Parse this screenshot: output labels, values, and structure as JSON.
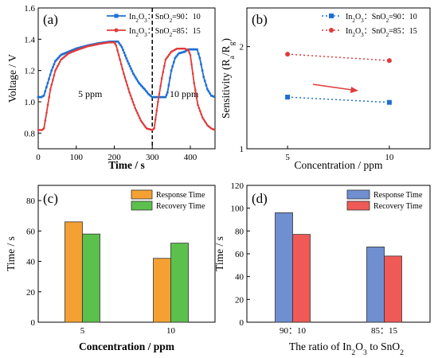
{
  "chart_data": [
    {
      "panel": "(a)",
      "type": "line",
      "xlabel": "Time / s",
      "ylabel": "Voltage / V",
      "xlim": [
        0,
        465
      ],
      "ylim": [
        0.7,
        1.6
      ],
      "xticks": [
        0,
        100,
        200,
        300,
        400
      ],
      "yticks": [
        0.8,
        1.0,
        1.2,
        1.4,
        1.6
      ],
      "xtick_labels": [
        "0",
        "100",
        "200",
        "300",
        "400"
      ],
      "ytick_labels": [
        "0.8",
        "1.0",
        "1.2",
        "1.4",
        "1.6"
      ],
      "legend": [
        "In2O3：SnO2=90：10",
        "In2O3：SnO2=85：15"
      ],
      "annotations": [
        "5 ppm",
        "10 ppm"
      ],
      "divider_x": 300,
      "series": [
        {
          "name": "In2O3：SnO2=90：10",
          "color": "#1f6fd1",
          "marker": "square",
          "points": [
            [
              0,
              1.03
            ],
            [
              8,
              1.03
            ],
            [
              15,
              1.04
            ],
            [
              25,
              1.12
            ],
            [
              35,
              1.2
            ],
            [
              45,
              1.26
            ],
            [
              60,
              1.3
            ],
            [
              80,
              1.32
            ],
            [
              100,
              1.34
            ],
            [
              130,
              1.36
            ],
            [
              160,
              1.375
            ],
            [
              190,
              1.385
            ],
            [
              210,
              1.385
            ],
            [
              220,
              1.35
            ],
            [
              235,
              1.26
            ],
            [
              250,
              1.18
            ],
            [
              265,
              1.12
            ],
            [
              280,
              1.08
            ],
            [
              290,
              1.05
            ],
            [
              300,
              1.03
            ],
            [
              320,
              1.03
            ],
            [
              335,
              1.03
            ],
            [
              340,
              1.06
            ],
            [
              350,
              1.2
            ],
            [
              360,
              1.28
            ],
            [
              370,
              1.31
            ],
            [
              385,
              1.32
            ],
            [
              395,
              1.335
            ],
            [
              418,
              1.335
            ],
            [
              425,
              1.28
            ],
            [
              435,
              1.16
            ],
            [
              445,
              1.08
            ],
            [
              455,
              1.04
            ],
            [
              465,
              1.03
            ]
          ]
        },
        {
          "name": "In2O3：SnO2=85：15",
          "color": "#e03b3b",
          "marker": "circle",
          "points": [
            [
              0,
              0.82
            ],
            [
              10,
              0.82
            ],
            [
              15,
              0.83
            ],
            [
              22,
              0.93
            ],
            [
              32,
              1.08
            ],
            [
              45,
              1.2
            ],
            [
              60,
              1.27
            ],
            [
              80,
              1.31
            ],
            [
              100,
              1.33
            ],
            [
              130,
              1.355
            ],
            [
              160,
              1.37
            ],
            [
              185,
              1.38
            ],
            [
              200,
              1.38
            ],
            [
              205,
              1.36
            ],
            [
              215,
              1.27
            ],
            [
              225,
              1.18
            ],
            [
              240,
              1.06
            ],
            [
              255,
              0.96
            ],
            [
              270,
              0.88
            ],
            [
              285,
              0.83
            ],
            [
              300,
              0.82
            ],
            [
              305,
              0.83
            ],
            [
              315,
              1.0
            ],
            [
              325,
              1.15
            ],
            [
              335,
              1.27
            ],
            [
              350,
              1.32
            ],
            [
              365,
              1.34
            ],
            [
              385,
              1.34
            ],
            [
              395,
              1.33
            ],
            [
              400,
              1.3
            ],
            [
              410,
              1.12
            ],
            [
              420,
              0.98
            ],
            [
              432,
              0.9
            ],
            [
              445,
              0.85
            ],
            [
              455,
              0.83
            ],
            [
              465,
              0.82
            ]
          ]
        }
      ]
    },
    {
      "panel": "(b)",
      "type": "scatter",
      "xlabel": "Concentration / ppm",
      "ylabel": "Sensitivity (Ra/Rg)",
      "yscale": "log",
      "xlim": [
        3,
        12
      ],
      "ylim": [
        1,
        2.6
      ],
      "xticks": [
        5,
        10
      ],
      "yticks": [
        1,
        2
      ],
      "xtick_labels": [
        "5",
        "10"
      ],
      "ytick_labels": [
        "1",
        "2"
      ],
      "legend": [
        "In2O3：SnO2=90：10",
        "In2O3：SnO2=85：15"
      ],
      "series": [
        {
          "name": "In2O3：SnO2=90：10",
          "color": "#1f6fd1",
          "marker": "square",
          "x": [
            5,
            10
          ],
          "y": [
            1.42,
            1.37
          ]
        },
        {
          "name": "In2O3：SnO2=85：15",
          "color": "#e03b3b",
          "marker": "circle",
          "x": [
            5,
            10
          ],
          "y": [
            1.9,
            1.82
          ]
        }
      ]
    },
    {
      "panel": "(c)",
      "type": "bar",
      "xlabel": "Concentration / ppm",
      "ylabel": "Time / s",
      "ylim": [
        0,
        90
      ],
      "yticks": [
        0,
        20,
        40,
        60,
        80
      ],
      "ytick_labels": [
        "0",
        "20",
        "40",
        "60",
        "80"
      ],
      "categories": [
        "5",
        "10"
      ],
      "series": [
        {
          "name": "Response Time",
          "color": "#f5a033",
          "values": [
            66,
            42
          ]
        },
        {
          "name": "Recovery Time",
          "color": "#5cc04d",
          "values": [
            58,
            52
          ]
        }
      ]
    },
    {
      "panel": "(d)",
      "type": "bar",
      "xlabel": "The ratio of In2O3 to SnO2",
      "ylabel": "Time / s",
      "ylim": [
        0,
        120
      ],
      "yticks": [
        0,
        20,
        40,
        60,
        80,
        100,
        120
      ],
      "ytick_labels": [
        "0",
        "20",
        "40",
        "60",
        "80",
        "100",
        "120"
      ],
      "categories": [
        "90：10",
        "85：15"
      ],
      "series": [
        {
          "name": "Response Time",
          "color": "#6f8fd0",
          "values": [
            96,
            66
          ]
        },
        {
          "name": "Recovery Time",
          "color": "#ef5a57",
          "values": [
            77,
            58
          ]
        }
      ]
    }
  ]
}
